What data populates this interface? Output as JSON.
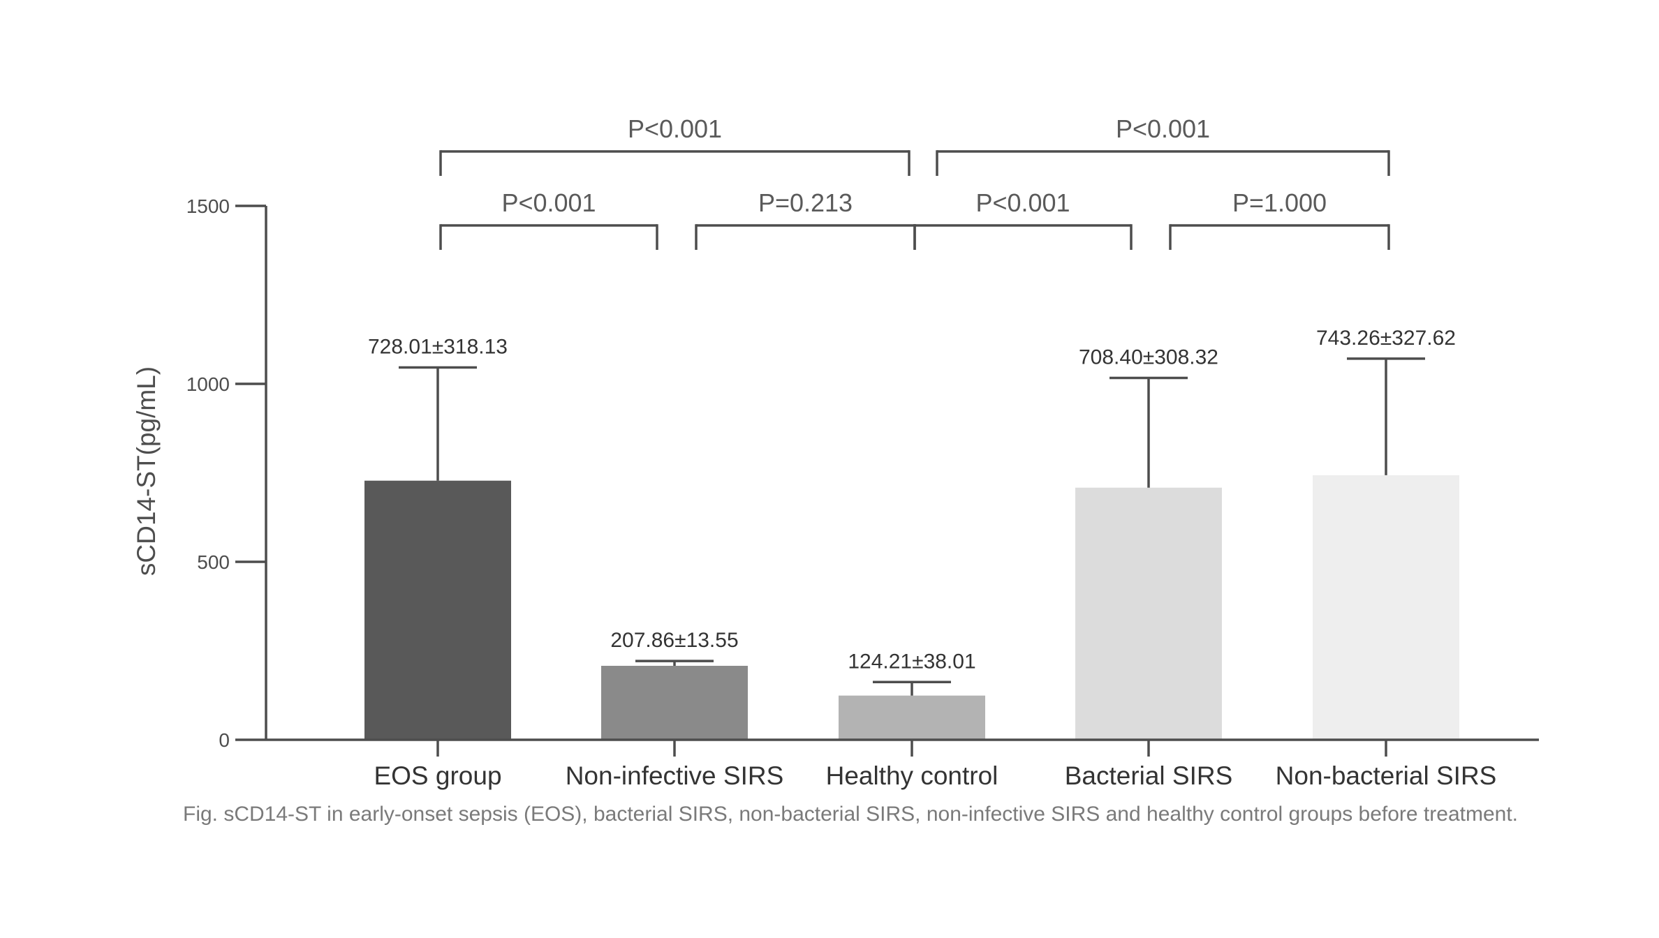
{
  "chart_data": {
    "type": "bar",
    "title": "",
    "xlabel": "",
    "ylabel": "sCD14-ST(pg/mL)",
    "ylim": [
      0,
      1500
    ],
    "yticks": [
      0,
      500,
      1000,
      1500
    ],
    "grid": false,
    "categories": [
      "EOS group",
      "Non-infective SIRS",
      "Healthy control",
      "Bacterial SIRS",
      "Non-bacterial SIRS"
    ],
    "values": [
      728.01,
      207.86,
      124.21,
      708.4,
      743.26
    ],
    "errors": [
      318.13,
      13.55,
      38.01,
      308.32,
      327.62
    ],
    "value_labels": [
      "728.01±318.13",
      "207.86±13.55",
      "124.21±38.01",
      "708.40±308.32",
      "743.26±327.62"
    ],
    "bar_colors": [
      "#595959",
      "#8a8a8a",
      "#b3b3b3",
      "#dcdcdc",
      "#eeeeee"
    ],
    "comparisons": [
      {
        "from": 0,
        "to": 2,
        "label": "P<0.001",
        "level": 2
      },
      {
        "from": 0,
        "to": 1,
        "label": "P<0.001",
        "level": 1
      },
      {
        "from": 1,
        "to": 2,
        "label": "P=0.213",
        "level": 1
      },
      {
        "from": 2,
        "to": 4,
        "label": "P<0.001",
        "level": 2
      },
      {
        "from": 2,
        "to": 3,
        "label": "P<0.001",
        "level": 1
      },
      {
        "from": 3,
        "to": 4,
        "label": "P=1.000",
        "level": 1
      }
    ]
  },
  "caption": "Fig. sCD14-ST in early-onset sepsis (EOS), bacterial SIRS, non-bacterial SIRS, non-infective SIRS and healthy control groups before treatment."
}
